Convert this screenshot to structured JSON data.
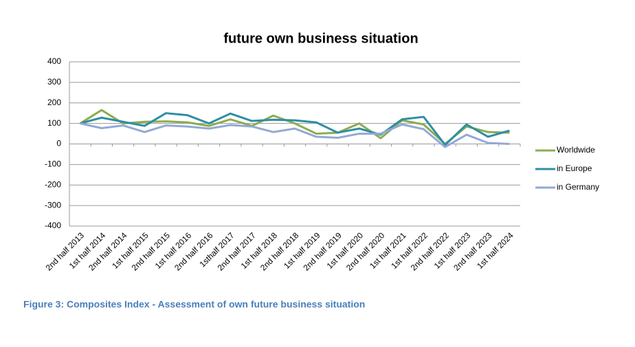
{
  "chart_data": {
    "type": "line",
    "title": "future own business situation",
    "categories": [
      "2nd half 2013",
      "1st half 2014",
      "2nd half 2014",
      "1st half 2015",
      "2nd half 2015",
      "1st half 2016",
      "2nd half 2016",
      "1sthalf 2017",
      "2nd half 2017",
      "1st half 2018",
      "2nd half 2018",
      "1st half 2019",
      "2nd half 2019",
      "1st half 2020",
      "2nd half 2020",
      "1st half 2021",
      "1st half 2022",
      "2nd half 2022",
      "1st half 2023",
      "2nd half 2023",
      "1st half 2024"
    ],
    "series": [
      {
        "name": "Worldwide",
        "color": "#8bac4f",
        "values": [
          100,
          165,
          100,
          108,
          110,
          105,
          88,
          120,
          88,
          138,
          100,
          50,
          55,
          100,
          28,
          115,
          95,
          0,
          85,
          58,
          55
        ]
      },
      {
        "name": "in Europe",
        "color": "#2f8ea3",
        "values": [
          100,
          128,
          108,
          88,
          150,
          140,
          100,
          148,
          112,
          118,
          115,
          105,
          55,
          75,
          45,
          120,
          132,
          -5,
          95,
          35,
          65
        ]
      },
      {
        "name": "in Germany",
        "color": "#93a9d4",
        "values": [
          100,
          77,
          90,
          58,
          90,
          85,
          75,
          92,
          85,
          58,
          75,
          35,
          30,
          50,
          50,
          95,
          72,
          -15,
          45,
          5,
          0
        ]
      }
    ],
    "ylim": [
      -400,
      400
    ],
    "yticks": [
      -400,
      -300,
      -200,
      -100,
      0,
      100,
      200,
      300,
      400
    ],
    "grid": true,
    "legend": "right"
  },
  "caption": "Figure 3: Composites Index - Assessment of own future business situation"
}
